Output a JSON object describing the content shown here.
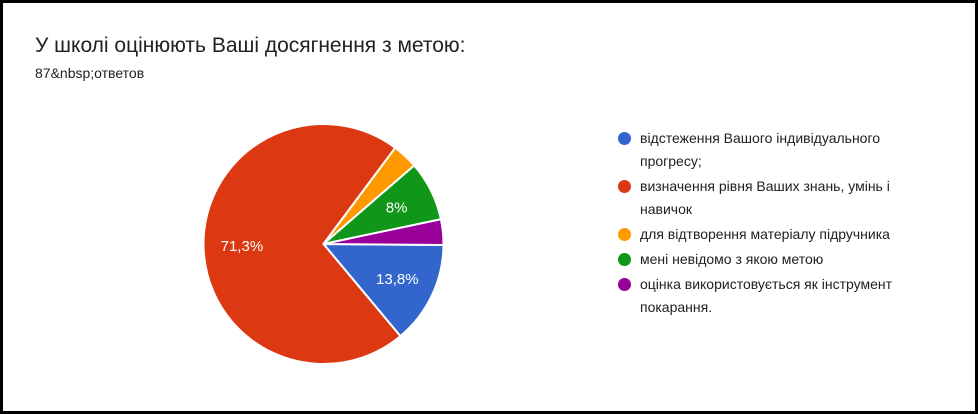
{
  "header": {
    "title": "У школі оцінюють Ваші досягнення з метою:",
    "subtitle": "87&nbsp;ответов"
  },
  "chart_data": {
    "type": "pie",
    "title": "У школі оцінюють Ваші досягнення з метою:",
    "subtitle": "87&nbsp;ответов",
    "total_responses": 87,
    "start_angle_deg": 90.5,
    "direction": "clockwise",
    "legend_position": "right",
    "slices": [
      {
        "label": "відстеження Вашого індивідуального прогресу;",
        "value": 12,
        "percent": 13.8,
        "pct_label": "13,8%",
        "color": "#3366CC"
      },
      {
        "label": "визначення рівня Ваших знань, умінь і навичок",
        "value": 62,
        "percent": 71.3,
        "pct_label": "71,3%",
        "color": "#DC3912"
      },
      {
        "label": "для відтворення матеріалу підручника",
        "value": 3,
        "percent": 3.4,
        "pct_label": "",
        "color": "#FF9900"
      },
      {
        "label": "мені невідомо з якою метою",
        "value": 7,
        "percent": 8.0,
        "pct_label": "8%",
        "color": "#109618"
      },
      {
        "label": "оцінка використовується як інструмент покарання.",
        "value": 3,
        "percent": 3.4,
        "pct_label": "",
        "color": "#990099"
      }
    ]
  }
}
